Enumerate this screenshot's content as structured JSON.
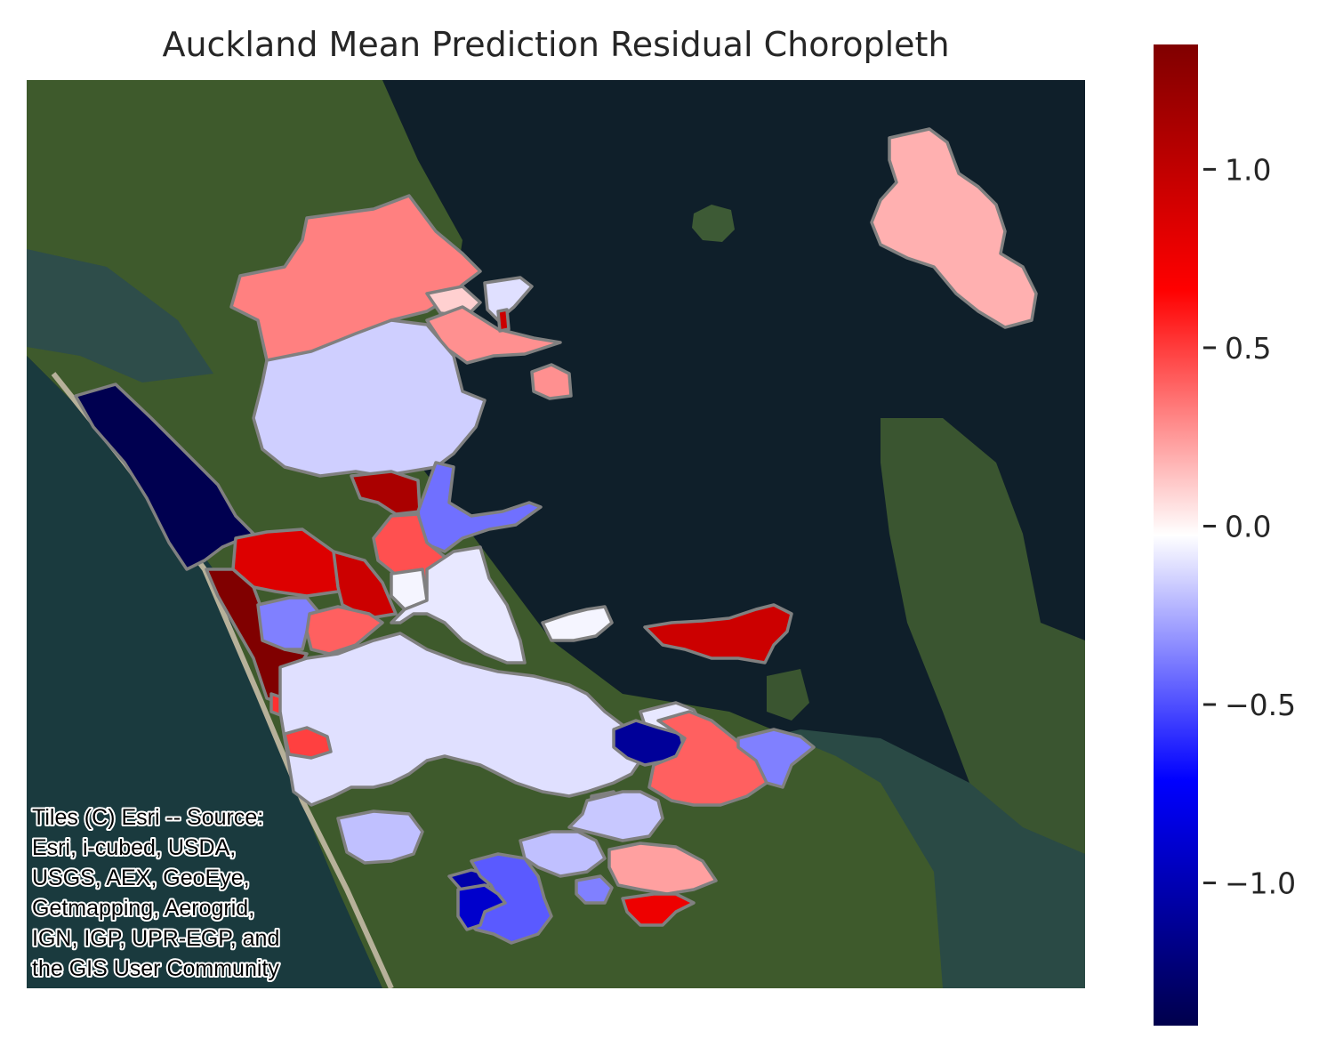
{
  "title": "Auckland Mean Prediction Residual Choropleth",
  "attribution": {
    "lines": [
      "Tiles (C) Esri -- Source:",
      "Esri, i-cubed, USDA,",
      "USGS, AEX, GeoEye,",
      "Getmapping, Aerogrid,",
      "IGN, IGP, UPR-EGP, and",
      "the GIS User Community"
    ]
  },
  "colorbar": {
    "colormap": "seismic",
    "vmin": -1.4,
    "vmax": 1.35,
    "ticks": [
      {
        "value": 1.0,
        "label": "1.0"
      },
      {
        "value": 0.5,
        "label": "0.5"
      },
      {
        "value": 0.0,
        "label": "0.0"
      },
      {
        "value": -0.5,
        "label": "−0.5"
      },
      {
        "value": -1.0,
        "label": "−1.0"
      }
    ],
    "colors": {
      "low": "#00004c",
      "blue": "#0000ff",
      "white": "#ffffff",
      "red": "#ff0000",
      "high": "#800000"
    }
  },
  "basemap": {
    "land_color": "#3e5a2c",
    "sea_color": "#0f1f2a",
    "border_color": "#808080"
  }
}
